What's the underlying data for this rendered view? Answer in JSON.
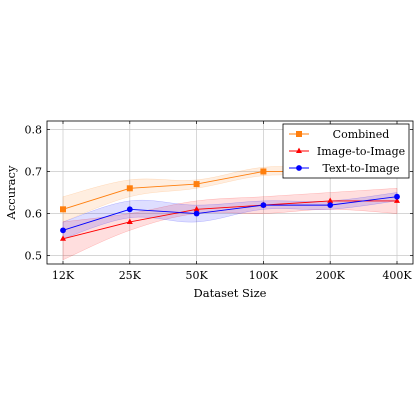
{
  "chart_data": {
    "type": "line",
    "xlabel": "Dataset Size",
    "ylabel": "Accuracy",
    "categories": [
      "12K",
      "25K",
      "50K",
      "100K",
      "200K",
      "400K"
    ],
    "ylim": [
      0.48,
      0.82
    ],
    "yticks": [
      0.5,
      0.6,
      0.7,
      0.8
    ],
    "yticklabels": [
      "0.5",
      "0.6",
      "0.7",
      "0.8"
    ],
    "grid": true,
    "legend_position": "top-right",
    "series": [
      {
        "name": "Combined",
        "color": "#ff7f0e",
        "marker": "square",
        "values": [
          0.61,
          0.66,
          0.67,
          0.7,
          0.7,
          0.72
        ],
        "lower": [
          0.58,
          0.64,
          0.66,
          0.69,
          0.69,
          0.71
        ],
        "upper": [
          0.64,
          0.68,
          0.68,
          0.71,
          0.71,
          0.73
        ]
      },
      {
        "name": "Image-to-Image",
        "color": "#ff0000",
        "marker": "triangle",
        "values": [
          0.54,
          0.58,
          0.61,
          0.62,
          0.63,
          0.63
        ],
        "lower": [
          0.49,
          0.56,
          0.6,
          0.6,
          0.61,
          0.6
        ],
        "upper": [
          0.58,
          0.6,
          0.63,
          0.64,
          0.65,
          0.66
        ]
      },
      {
        "name": "Text-to-Image",
        "color": "#0000ff",
        "marker": "circle",
        "values": [
          0.56,
          0.61,
          0.6,
          0.62,
          0.62,
          0.64
        ],
        "lower": [
          0.54,
          0.59,
          0.58,
          0.61,
          0.61,
          0.63
        ],
        "upper": [
          0.58,
          0.63,
          0.62,
          0.63,
          0.63,
          0.65
        ]
      }
    ]
  }
}
